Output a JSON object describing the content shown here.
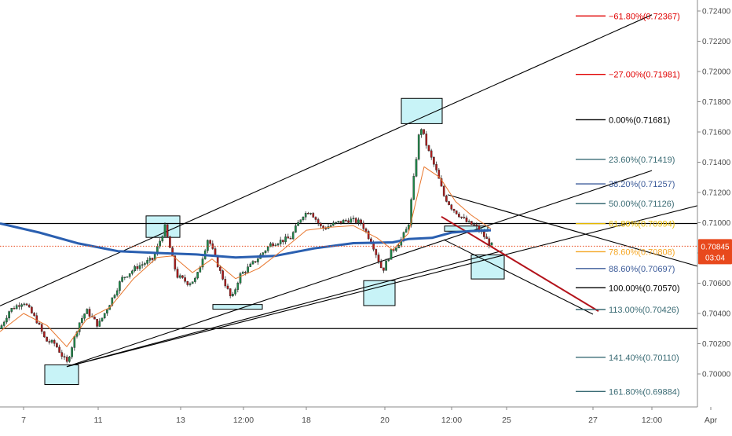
{
  "chart_data": {
    "type": "candlestick",
    "title": "",
    "y_axis": {
      "ticks": [
        "0.72400",
        "0.72200",
        "0.72000",
        "0.71800",
        "0.71600",
        "0.71400",
        "0.71200",
        "0.71000",
        "0.70800",
        "0.70600",
        "0.70400",
        "0.70200",
        "0.70000"
      ],
      "range": [
        0.6988,
        0.7246
      ]
    },
    "x_axis": {
      "ticks": [
        {
          "label": "7",
          "t": 0.03
        },
        {
          "label": "11",
          "t": 0.125
        },
        {
          "label": "13",
          "t": 0.23
        },
        {
          "label": "12:00",
          "t": 0.31
        },
        {
          "label": "18",
          "t": 0.39
        },
        {
          "label": "20",
          "t": 0.49
        },
        {
          "label": "12:00",
          "t": 0.575
        },
        {
          "label": "25",
          "t": 0.645
        },
        {
          "label": "27",
          "t": 0.755
        },
        {
          "label": "12:00",
          "t": 0.83
        },
        {
          "label": "Apr",
          "t": 0.905
        }
      ]
    },
    "current_price": {
      "value": "0.70845",
      "countdown": "03:04",
      "color": "#e8491d"
    },
    "fib_levels": [
      {
        "label": "−61.80%(0.72367)",
        "value": 0.72367,
        "color": "#e00000"
      },
      {
        "label": "−27.00%(0.71981)",
        "value": 0.71981,
        "color": "#e00000"
      },
      {
        "label": "0.00%(0.71681)",
        "value": 0.71681,
        "color": "#000000"
      },
      {
        "label": "23.60%(0.71419)",
        "value": 0.71419,
        "color": "#3a6b74"
      },
      {
        "label": "38.20%(0.71257)",
        "value": 0.71257,
        "color": "#3d5c9a"
      },
      {
        "label": "50.00%(0.71126)",
        "value": 0.71126,
        "color": "#3a6b74"
      },
      {
        "label": "61.80%(0.70994)",
        "value": 0.70994,
        "color": "#e5b800"
      },
      {
        "label": "78.60%(0.70808)",
        "value": 0.70808,
        "color": "#f5a623"
      },
      {
        "label": "88.60%(0.70697)",
        "value": 0.70697,
        "color": "#3d5c9a"
      },
      {
        "label": "100.00%(0.70570)",
        "value": 0.7057,
        "color": "#000000"
      },
      {
        "label": "113.00%(0.70426)",
        "value": 0.70426,
        "color": "#3a6b74"
      },
      {
        "label": "141.40%(0.70110)",
        "value": 0.7011,
        "color": "#3a6b74"
      },
      {
        "label": "161.80%(0.69884)",
        "value": 0.69884,
        "color": "#3a6b74"
      }
    ],
    "horizontal_lines": [
      0.70995,
      0.703
    ],
    "channel_lines": [
      {
        "from": [
          0.0,
          0.7045
        ],
        "to": [
          0.83,
          0.72375
        ]
      },
      {
        "from": [
          0.085,
          0.70048
        ],
        "to": [
          0.83,
          0.71345
        ]
      },
      {
        "from": [
          0.085,
          0.70048
        ],
        "to": [
          0.95,
          0.71195
        ]
      },
      {
        "from": [
          0.085,
          0.70048
        ],
        "to": [
          0.64,
          0.70815
        ]
      },
      {
        "from": [
          0.57,
          0.71185
        ],
        "to": [
          0.95,
          0.7062
        ]
      },
      {
        "from": [
          0.565,
          0.70888
        ],
        "to": [
          0.755,
          0.70395
        ]
      }
    ],
    "red_line": {
      "from": [
        0.562,
        0.7104
      ],
      "to": [
        0.762,
        0.70415
      ],
      "color": "#b3131b"
    },
    "highlight_boxes": [
      {
        "x0": 0.057,
        "x1": 0.1,
        "y0": 0.6993,
        "y1": 0.7006
      },
      {
        "x0": 0.186,
        "x1": 0.229,
        "y0": 0.70903,
        "y1": 0.71045
      },
      {
        "x0": 0.271,
        "x1": 0.334,
        "y0": 0.70428,
        "y1": 0.70459
      },
      {
        "x0": 0.463,
        "x1": 0.503,
        "y0": 0.70452,
        "y1": 0.70617
      },
      {
        "x0": 0.511,
        "x1": 0.563,
        "y0": 0.71655,
        "y1": 0.71822
      },
      {
        "x0": 0.566,
        "x1": 0.621,
        "y0": 0.70944,
        "y1": 0.70978
      },
      {
        "x0": 0.6,
        "x1": 0.642,
        "y0": 0.70628,
        "y1": 0.70787
      }
    ],
    "price_anchors": [
      [
        0.0,
        0.703
      ],
      [
        0.012,
        0.7042
      ],
      [
        0.03,
        0.7048
      ],
      [
        0.047,
        0.7035
      ],
      [
        0.058,
        0.7022
      ],
      [
        0.07,
        0.702
      ],
      [
        0.085,
        0.7007
      ],
      [
        0.1,
        0.7033
      ],
      [
        0.11,
        0.7042
      ],
      [
        0.125,
        0.7032
      ],
      [
        0.14,
        0.7047
      ],
      [
        0.155,
        0.7063
      ],
      [
        0.175,
        0.7071
      ],
      [
        0.195,
        0.7076
      ],
      [
        0.21,
        0.7097
      ],
      [
        0.225,
        0.7065
      ],
      [
        0.24,
        0.706
      ],
      [
        0.25,
        0.7063
      ],
      [
        0.265,
        0.709
      ],
      [
        0.28,
        0.7068
      ],
      [
        0.295,
        0.7049
      ],
      [
        0.305,
        0.7065
      ],
      [
        0.32,
        0.7072
      ],
      [
        0.345,
        0.7086
      ],
      [
        0.37,
        0.709
      ],
      [
        0.385,
        0.7105
      ],
      [
        0.395,
        0.7108
      ],
      [
        0.41,
        0.7096
      ],
      [
        0.43,
        0.71
      ],
      [
        0.445,
        0.7102
      ],
      [
        0.46,
        0.71
      ],
      [
        0.475,
        0.7085
      ],
      [
        0.487,
        0.7068
      ],
      [
        0.497,
        0.708
      ],
      [
        0.51,
        0.7088
      ],
      [
        0.52,
        0.7098
      ],
      [
        0.527,
        0.713
      ],
      [
        0.535,
        0.7165
      ],
      [
        0.545,
        0.7148
      ],
      [
        0.555,
        0.7135
      ],
      [
        0.565,
        0.7118
      ],
      [
        0.575,
        0.711
      ],
      [
        0.585,
        0.7105
      ],
      [
        0.595,
        0.71
      ],
      [
        0.605,
        0.7098
      ],
      [
        0.615,
        0.7092
      ],
      [
        0.625,
        0.7085
      ]
    ],
    "ema_series": [
      {
        "name": "",
        "color": "#2a5fb0",
        "width": 3,
        "points": [
          [
            0.0,
            0.70995
          ],
          [
            0.05,
            0.70935
          ],
          [
            0.1,
            0.70863
          ],
          [
            0.15,
            0.70812
          ],
          [
            0.2,
            0.708
          ],
          [
            0.25,
            0.7079
          ],
          [
            0.3,
            0.7077
          ],
          [
            0.35,
            0.7078
          ],
          [
            0.4,
            0.7083
          ],
          [
            0.45,
            0.70865
          ],
          [
            0.5,
            0.7087
          ],
          [
            0.52,
            0.70892
          ],
          [
            0.55,
            0.709
          ],
          [
            0.575,
            0.70935
          ],
          [
            0.6,
            0.70945
          ],
          [
            0.625,
            0.7095
          ]
        ]
      },
      {
        "name": "",
        "color": "#e8762d",
        "width": 1,
        "points": [
          [
            0.0,
            0.7028
          ],
          [
            0.03,
            0.704
          ],
          [
            0.06,
            0.7032
          ],
          [
            0.085,
            0.7018
          ],
          [
            0.11,
            0.7036
          ],
          [
            0.14,
            0.7044
          ],
          [
            0.17,
            0.7063
          ],
          [
            0.2,
            0.7077
          ],
          [
            0.22,
            0.7078
          ],
          [
            0.245,
            0.7067
          ],
          [
            0.27,
            0.7076
          ],
          [
            0.3,
            0.7063
          ],
          [
            0.33,
            0.707
          ],
          [
            0.36,
            0.7082
          ],
          [
            0.39,
            0.7095
          ],
          [
            0.42,
            0.7097
          ],
          [
            0.45,
            0.7098
          ],
          [
            0.48,
            0.709
          ],
          [
            0.5,
            0.7082
          ],
          [
            0.52,
            0.7093
          ],
          [
            0.54,
            0.7137
          ],
          [
            0.56,
            0.713
          ],
          [
            0.58,
            0.7114
          ],
          [
            0.6,
            0.7105
          ],
          [
            0.625,
            0.7096
          ]
        ]
      }
    ]
  }
}
